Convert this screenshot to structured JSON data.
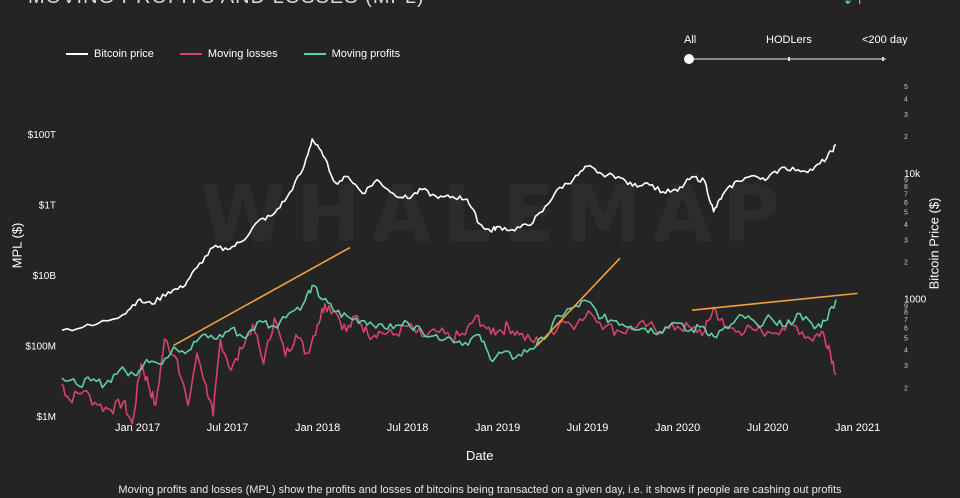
{
  "title": "MOVING PROFITS AND LOSSES (MPL)",
  "top_right_mark": "↓↑",
  "watermark": "WHALEMAP",
  "caption": "Moving profits and losses (MPL) show the profits and losses of bitcoins being transacted on a given day, i.e. it shows if people are cashing out profits",
  "slider": {
    "labels": [
      "All",
      "HODLers",
      "<200 day"
    ],
    "selected": "All"
  },
  "colors": {
    "background": "#242424",
    "price": "#ffffff",
    "losses": "#d6426c",
    "profits": "#5fd0a4",
    "trend": "#f0a040"
  },
  "chart_data": {
    "type": "line",
    "xlabel": "Date",
    "ylabel_left": "MPL ($)",
    "ylabel_right": "Bitcoin Price ($)",
    "x_ticks": [
      "Jan 2017",
      "Jul 2017",
      "Jan 2018",
      "Jul 2018",
      "Jan 2019",
      "Jul 2019",
      "Jan 2020",
      "Jul 2020",
      "Jan 2021"
    ],
    "x_range": [
      2016.58,
      2021.08
    ],
    "y_left_log10_range": [
      5.6,
      14.0
    ],
    "y_left_ticks": [
      {
        "label": "$1M",
        "log": 6
      },
      {
        "label": "$100M",
        "log": 8
      },
      {
        "label": "$10B",
        "log": 10
      },
      {
        "label": "$1T",
        "log": 12
      },
      {
        "label": "$100T",
        "log": 14
      }
    ],
    "y_right_log10_range": [
      2.2,
      4.7
    ],
    "y_right_ticks": [
      {
        "label": "2",
        "log": 2.301
      },
      {
        "label": "3",
        "log": 2.477
      },
      {
        "label": "4",
        "log": 2.602
      },
      {
        "label": "5",
        "log": 2.699
      },
      {
        "label": "6",
        "log": 2.778
      },
      {
        "label": "7",
        "log": 2.845
      },
      {
        "label": "8",
        "log": 2.903
      },
      {
        "label": "9",
        "log": 2.954
      },
      {
        "label": "1000",
        "log": 3.0
      },
      {
        "label": "2",
        "log": 3.301
      },
      {
        "label": "3",
        "log": 3.477
      },
      {
        "label": "4",
        "log": 3.602
      },
      {
        "label": "5",
        "log": 3.699
      },
      {
        "label": "6",
        "log": 3.778
      },
      {
        "label": "7",
        "log": 3.845
      },
      {
        "label": "8",
        "log": 3.903
      },
      {
        "label": "9",
        "log": 3.954
      },
      {
        "label": "10k",
        "log": 4.0
      },
      {
        "label": "2",
        "log": 4.301
      },
      {
        "label": "3",
        "log": 4.477
      },
      {
        "label": "4",
        "log": 4.602
      },
      {
        "label": "5",
        "log": 4.699
      }
    ],
    "series": [
      {
        "name": "Bitcoin price",
        "color": "#ffffff",
        "points": [
          [
            2016.58,
            570
          ],
          [
            2016.75,
            620
          ],
          [
            2016.92,
            760
          ],
          [
            2017.0,
            980
          ],
          [
            2017.08,
            920
          ],
          [
            2017.17,
            1150
          ],
          [
            2017.25,
            1250
          ],
          [
            2017.33,
            1800
          ],
          [
            2017.42,
            2600
          ],
          [
            2017.5,
            2500
          ],
          [
            2017.58,
            2900
          ],
          [
            2017.67,
            4200
          ],
          [
            2017.75,
            4700
          ],
          [
            2017.83,
            6500
          ],
          [
            2017.92,
            11000
          ],
          [
            2017.97,
            19000
          ],
          [
            2018.03,
            14000
          ],
          [
            2018.1,
            8500
          ],
          [
            2018.17,
            9500
          ],
          [
            2018.25,
            7000
          ],
          [
            2018.33,
            9000
          ],
          [
            2018.42,
            7000
          ],
          [
            2018.5,
            6400
          ],
          [
            2018.58,
            7500
          ],
          [
            2018.67,
            6400
          ],
          [
            2018.75,
            6600
          ],
          [
            2018.83,
            6300
          ],
          [
            2018.9,
            4000
          ],
          [
            2018.96,
            3500
          ],
          [
            2019.0,
            3800
          ],
          [
            2019.08,
            3600
          ],
          [
            2019.17,
            3900
          ],
          [
            2019.25,
            5000
          ],
          [
            2019.33,
            7500
          ],
          [
            2019.42,
            9000
          ],
          [
            2019.5,
            11500
          ],
          [
            2019.58,
            10000
          ],
          [
            2019.67,
            9500
          ],
          [
            2019.75,
            8000
          ],
          [
            2019.83,
            8500
          ],
          [
            2019.92,
            7200
          ],
          [
            2020.0,
            7300
          ],
          [
            2020.08,
            9500
          ],
          [
            2020.15,
            8800
          ],
          [
            2020.2,
            5000
          ],
          [
            2020.25,
            6800
          ],
          [
            2020.33,
            8800
          ],
          [
            2020.42,
            9700
          ],
          [
            2020.5,
            9200
          ],
          [
            2020.58,
            11300
          ],
          [
            2020.67,
            10800
          ],
          [
            2020.75,
            10700
          ],
          [
            2020.83,
            13500
          ],
          [
            2020.88,
            17000
          ]
        ]
      },
      {
        "name": "Moving losses",
        "color": "#d6426c",
        "points": [
          [
            2016.58,
            8
          ],
          [
            2016.62,
            3
          ],
          [
            2016.7,
            5
          ],
          [
            2016.78,
            2
          ],
          [
            2016.85,
            1.5
          ],
          [
            2016.92,
            2.5
          ],
          [
            2016.97,
            0.6
          ],
          [
            2017.02,
            30
          ],
          [
            2017.06,
            8
          ],
          [
            2017.1,
            2
          ],
          [
            2017.15,
            150
          ],
          [
            2017.22,
            40
          ],
          [
            2017.28,
            2
          ],
          [
            2017.33,
            60
          ],
          [
            2017.38,
            8
          ],
          [
            2017.42,
            1
          ],
          [
            2017.46,
            150
          ],
          [
            2017.52,
            20
          ],
          [
            2017.58,
            80
          ],
          [
            2017.64,
            400
          ],
          [
            2017.7,
            30
          ],
          [
            2017.76,
            600
          ],
          [
            2017.82,
            50
          ],
          [
            2017.88,
            200
          ],
          [
            2017.94,
            60
          ],
          [
            2018.0,
            400
          ],
          [
            2018.04,
            1500
          ],
          [
            2018.1,
            900
          ],
          [
            2018.16,
            250
          ],
          [
            2018.22,
            700
          ],
          [
            2018.28,
            200
          ],
          [
            2018.34,
            250
          ],
          [
            2018.42,
            200
          ],
          [
            2018.5,
            350
          ],
          [
            2018.58,
            180
          ],
          [
            2018.66,
            250
          ],
          [
            2018.74,
            160
          ],
          [
            2018.82,
            200
          ],
          [
            2018.88,
            700
          ],
          [
            2018.94,
            300
          ],
          [
            2019.0,
            250
          ],
          [
            2019.06,
            350
          ],
          [
            2019.12,
            200
          ],
          [
            2019.2,
            120
          ],
          [
            2019.28,
            200
          ],
          [
            2019.36,
            500
          ],
          [
            2019.44,
            400
          ],
          [
            2019.52,
            800
          ],
          [
            2019.6,
            350
          ],
          [
            2019.68,
            250
          ],
          [
            2019.76,
            300
          ],
          [
            2019.84,
            400
          ],
          [
            2019.92,
            250
          ],
          [
            2020.0,
            350
          ],
          [
            2020.08,
            300
          ],
          [
            2020.15,
            250
          ],
          [
            2020.2,
            1200
          ],
          [
            2020.26,
            350
          ],
          [
            2020.34,
            250
          ],
          [
            2020.42,
            280
          ],
          [
            2020.5,
            250
          ],
          [
            2020.58,
            300
          ],
          [
            2020.66,
            350
          ],
          [
            2020.74,
            150
          ],
          [
            2020.8,
            250
          ],
          [
            2020.84,
            100
          ],
          [
            2020.88,
            15
          ]
        ]
      },
      {
        "name": "Moving profits",
        "color": "#5fd0a4",
        "points": [
          [
            2016.58,
            12
          ],
          [
            2016.66,
            8
          ],
          [
            2016.74,
            10
          ],
          [
            2016.82,
            8
          ],
          [
            2016.9,
            20
          ],
          [
            2016.98,
            15
          ],
          [
            2017.05,
            40
          ],
          [
            2017.12,
            30
          ],
          [
            2017.2,
            90
          ],
          [
            2017.28,
            70
          ],
          [
            2017.36,
            200
          ],
          [
            2017.44,
            150
          ],
          [
            2017.52,
            300
          ],
          [
            2017.6,
            160
          ],
          [
            2017.68,
            500
          ],
          [
            2017.76,
            350
          ],
          [
            2017.84,
            800
          ],
          [
            2017.92,
            1500
          ],
          [
            2017.97,
            5000
          ],
          [
            2018.03,
            2000
          ],
          [
            2018.1,
            900
          ],
          [
            2018.18,
            600
          ],
          [
            2018.26,
            500
          ],
          [
            2018.34,
            400
          ],
          [
            2018.42,
            300
          ],
          [
            2018.5,
            450
          ],
          [
            2018.58,
            250
          ],
          [
            2018.66,
            200
          ],
          [
            2018.74,
            160
          ],
          [
            2018.82,
            120
          ],
          [
            2018.9,
            200
          ],
          [
            2018.96,
            40
          ],
          [
            2019.02,
            60
          ],
          [
            2019.1,
            45
          ],
          [
            2019.18,
            80
          ],
          [
            2019.26,
            150
          ],
          [
            2019.34,
            700
          ],
          [
            2019.42,
            1200
          ],
          [
            2019.5,
            1800
          ],
          [
            2019.58,
            600
          ],
          [
            2019.66,
            500
          ],
          [
            2019.74,
            350
          ],
          [
            2019.82,
            300
          ],
          [
            2019.9,
            250
          ],
          [
            2019.98,
            450
          ],
          [
            2020.06,
            250
          ],
          [
            2020.14,
            350
          ],
          [
            2020.2,
            180
          ],
          [
            2020.28,
            300
          ],
          [
            2020.36,
            700
          ],
          [
            2020.44,
            400
          ],
          [
            2020.52,
            600
          ],
          [
            2020.6,
            350
          ],
          [
            2020.68,
            800
          ],
          [
            2020.76,
            300
          ],
          [
            2020.82,
            500
          ],
          [
            2020.88,
            2000
          ]
        ]
      }
    ],
    "trend_lines": [
      {
        "series": "profits",
        "from": [
          2017.2,
          100
        ],
        "to": [
          2018.18,
          60000
        ]
      },
      {
        "series": "profits",
        "from": [
          2019.22,
          100
        ],
        "to": [
          2019.68,
          30000
        ]
      },
      {
        "series": "profits",
        "from": [
          2020.08,
          1000
        ],
        "to": [
          2021.0,
          3000
        ]
      }
    ]
  }
}
